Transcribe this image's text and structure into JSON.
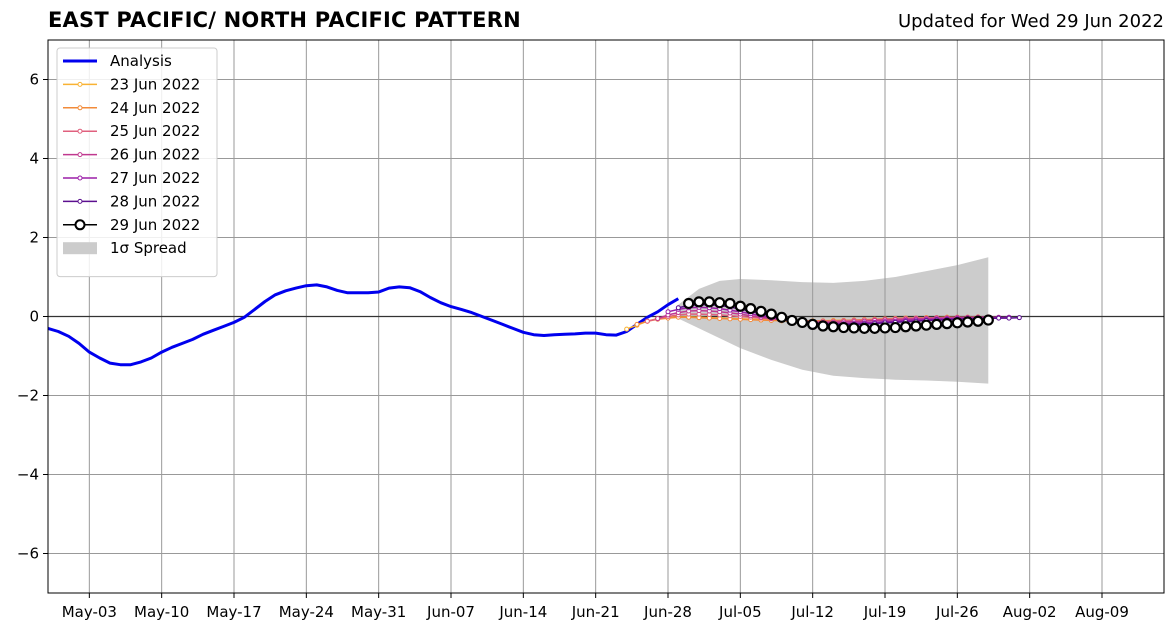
{
  "chart_data": {
    "type": "line",
    "title": "EAST PACIFIC/ NORTH PACIFIC PATTERN",
    "subtitle": "Updated for Wed 29 Jun 2022",
    "ylim": [
      -7,
      7
    ],
    "yticks": [
      6,
      4,
      2,
      0,
      -2,
      -4,
      -6
    ],
    "ytick_labels": [
      "6",
      "4",
      "2",
      "0",
      "−2",
      "−4",
      "−6"
    ],
    "xlim": [
      "2022-04-29",
      "2022-08-15"
    ],
    "xticks": [
      "2022-05-03",
      "2022-05-10",
      "2022-05-17",
      "2022-05-24",
      "2022-05-31",
      "2022-06-07",
      "2022-06-14",
      "2022-06-21",
      "2022-06-28",
      "2022-07-05",
      "2022-07-12",
      "2022-07-19",
      "2022-07-26",
      "2022-08-02",
      "2022-08-09"
    ],
    "xtick_labels": [
      "May-03",
      "May-10",
      "May-17",
      "May-24",
      "May-31",
      "Jun-07",
      "Jun-14",
      "Jun-21",
      "Jun-28",
      "Jul-05",
      "Jul-12",
      "Jul-19",
      "Jul-26",
      "Aug-02",
      "Aug-09"
    ],
    "grid": true,
    "legend_position": "top-left",
    "spread": {
      "name": "1σ Spread",
      "color": "#cccccc",
      "x": [
        "2022-06-29",
        "2022-07-01",
        "2022-07-03",
        "2022-07-05",
        "2022-07-08",
        "2022-07-11",
        "2022-07-14",
        "2022-07-17",
        "2022-07-20",
        "2022-07-23",
        "2022-07-26",
        "2022-07-29"
      ],
      "upper": [
        0.3,
        0.7,
        0.9,
        0.95,
        0.92,
        0.87,
        0.85,
        0.9,
        1.0,
        1.15,
        1.3,
        1.5
      ],
      "lower": [
        -0.05,
        -0.3,
        -0.55,
        -0.8,
        -1.1,
        -1.35,
        -1.5,
        -1.56,
        -1.6,
        -1.62,
        -1.65,
        -1.7
      ]
    },
    "series": [
      {
        "name": "Analysis",
        "color": "#0000ee",
        "width": 3,
        "marker": "none",
        "x": [
          "2022-04-29",
          "2022-04-30",
          "2022-05-01",
          "2022-05-02",
          "2022-05-03",
          "2022-05-04",
          "2022-05-05",
          "2022-05-06",
          "2022-05-07",
          "2022-05-08",
          "2022-05-09",
          "2022-05-10",
          "2022-05-11",
          "2022-05-12",
          "2022-05-13",
          "2022-05-14",
          "2022-05-15",
          "2022-05-16",
          "2022-05-17",
          "2022-05-18",
          "2022-05-19",
          "2022-05-20",
          "2022-05-21",
          "2022-05-22",
          "2022-05-23",
          "2022-05-24",
          "2022-05-25",
          "2022-05-26",
          "2022-05-27",
          "2022-05-28",
          "2022-05-29",
          "2022-05-30",
          "2022-05-31",
          "2022-06-01",
          "2022-06-02",
          "2022-06-03",
          "2022-06-04",
          "2022-06-05",
          "2022-06-06",
          "2022-06-07",
          "2022-06-08",
          "2022-06-09",
          "2022-06-10",
          "2022-06-11",
          "2022-06-12",
          "2022-06-13",
          "2022-06-14",
          "2022-06-15",
          "2022-06-16",
          "2022-06-17",
          "2022-06-18",
          "2022-06-19",
          "2022-06-20",
          "2022-06-21",
          "2022-06-22",
          "2022-06-23",
          "2022-06-24",
          "2022-06-25",
          "2022-06-26",
          "2022-06-27",
          "2022-06-28",
          "2022-06-29"
        ],
        "y": [
          -0.3,
          -0.38,
          -0.5,
          -0.68,
          -0.9,
          -1.05,
          -1.18,
          -1.22,
          -1.22,
          -1.15,
          -1.05,
          -0.9,
          -0.78,
          -0.68,
          -0.58,
          -0.45,
          -0.35,
          -0.25,
          -0.15,
          -0.02,
          0.18,
          0.38,
          0.55,
          0.65,
          0.72,
          0.78,
          0.8,
          0.75,
          0.66,
          0.6,
          0.6,
          0.6,
          0.62,
          0.72,
          0.75,
          0.73,
          0.63,
          0.48,
          0.35,
          0.25,
          0.18,
          0.1,
          0.0,
          -0.1,
          -0.2,
          -0.3,
          -0.4,
          -0.46,
          -0.48,
          -0.46,
          -0.45,
          -0.44,
          -0.42,
          -0.42,
          -0.46,
          -0.47,
          -0.38,
          -0.2,
          -0.02,
          0.12,
          0.3,
          0.45
        ]
      },
      {
        "name": "23 Jun 2022",
        "color": "#f9b233",
        "width": 1.5,
        "marker": "dot",
        "x": [
          "2022-06-24",
          "2022-06-25",
          "2022-06-26",
          "2022-06-27",
          "2022-06-28",
          "2022-06-29",
          "2022-06-30",
          "2022-07-01",
          "2022-07-02",
          "2022-07-03",
          "2022-07-04",
          "2022-07-05",
          "2022-07-06",
          "2022-07-07",
          "2022-07-08",
          "2022-07-09",
          "2022-07-10",
          "2022-07-11",
          "2022-07-12",
          "2022-07-13",
          "2022-07-14",
          "2022-07-15",
          "2022-07-16",
          "2022-07-17",
          "2022-07-18",
          "2022-07-19",
          "2022-07-20",
          "2022-07-21",
          "2022-07-22",
          "2022-07-23",
          "2022-07-24",
          "2022-07-25",
          "2022-07-26",
          "2022-07-27"
        ],
        "y": [
          -0.32,
          -0.22,
          -0.12,
          -0.05,
          -0.02,
          -0.01,
          -0.01,
          -0.02,
          -0.03,
          -0.04,
          -0.05,
          -0.06,
          -0.07,
          -0.08,
          -0.09,
          -0.1,
          -0.11,
          -0.11,
          -0.11,
          -0.11,
          -0.1,
          -0.1,
          -0.09,
          -0.08,
          -0.07,
          -0.06,
          -0.05,
          -0.04,
          -0.04,
          -0.03,
          -0.03,
          -0.02,
          -0.02,
          -0.02
        ]
      },
      {
        "name": "24 Jun 2022",
        "color": "#f28b3a",
        "width": 1.5,
        "marker": "dot",
        "x": [
          "2022-06-25",
          "2022-06-26",
          "2022-06-27",
          "2022-06-28",
          "2022-06-29",
          "2022-06-30",
          "2022-07-01",
          "2022-07-02",
          "2022-07-03",
          "2022-07-04",
          "2022-07-05",
          "2022-07-06",
          "2022-07-07",
          "2022-07-08",
          "2022-07-09",
          "2022-07-10",
          "2022-07-11",
          "2022-07-12",
          "2022-07-13",
          "2022-07-14",
          "2022-07-15",
          "2022-07-16",
          "2022-07-17",
          "2022-07-18",
          "2022-07-19",
          "2022-07-20",
          "2022-07-21",
          "2022-07-22",
          "2022-07-23",
          "2022-07-24",
          "2022-07-25",
          "2022-07-26",
          "2022-07-27",
          "2022-07-28"
        ],
        "y": [
          -0.2,
          -0.12,
          -0.07,
          -0.04,
          -0.02,
          -0.02,
          -0.03,
          -0.04,
          -0.05,
          -0.06,
          -0.07,
          -0.08,
          -0.09,
          -0.1,
          -0.11,
          -0.12,
          -0.12,
          -0.12,
          -0.11,
          -0.11,
          -0.1,
          -0.09,
          -0.08,
          -0.07,
          -0.06,
          -0.05,
          -0.04,
          -0.04,
          -0.03,
          -0.03,
          -0.02,
          -0.02,
          -0.02,
          -0.01
        ]
      },
      {
        "name": "25 Jun 2022",
        "color": "#e0607e",
        "width": 1.5,
        "marker": "dot",
        "x": [
          "2022-06-26",
          "2022-06-27",
          "2022-06-28",
          "2022-06-29",
          "2022-06-30",
          "2022-07-01",
          "2022-07-02",
          "2022-07-03",
          "2022-07-04",
          "2022-07-05",
          "2022-07-06",
          "2022-07-07",
          "2022-07-08",
          "2022-07-09",
          "2022-07-10",
          "2022-07-11",
          "2022-07-12",
          "2022-07-13",
          "2022-07-14",
          "2022-07-15",
          "2022-07-16",
          "2022-07-17",
          "2022-07-18",
          "2022-07-19",
          "2022-07-20",
          "2022-07-21",
          "2022-07-22",
          "2022-07-23",
          "2022-07-24",
          "2022-07-25",
          "2022-07-26",
          "2022-07-27",
          "2022-07-28",
          "2022-07-29"
        ],
        "y": [
          -0.12,
          -0.06,
          0.0,
          0.04,
          0.06,
          0.06,
          0.05,
          0.04,
          0.02,
          0.0,
          -0.02,
          -0.04,
          -0.06,
          -0.08,
          -0.1,
          -0.11,
          -0.12,
          -0.12,
          -0.12,
          -0.11,
          -0.1,
          -0.09,
          -0.08,
          -0.07,
          -0.06,
          -0.05,
          -0.04,
          -0.04,
          -0.03,
          -0.03,
          -0.02,
          -0.02,
          -0.02,
          -0.01
        ]
      },
      {
        "name": "26 Jun 2022",
        "color": "#c0398f",
        "width": 1.5,
        "marker": "dot",
        "x": [
          "2022-06-27",
          "2022-06-28",
          "2022-06-29",
          "2022-06-30",
          "2022-07-01",
          "2022-07-02",
          "2022-07-03",
          "2022-07-04",
          "2022-07-05",
          "2022-07-06",
          "2022-07-07",
          "2022-07-08",
          "2022-07-09",
          "2022-07-10",
          "2022-07-11",
          "2022-07-12",
          "2022-07-13",
          "2022-07-14",
          "2022-07-15",
          "2022-07-16",
          "2022-07-17",
          "2022-07-18",
          "2022-07-19",
          "2022-07-20",
          "2022-07-21",
          "2022-07-22",
          "2022-07-23",
          "2022-07-24",
          "2022-07-25",
          "2022-07-26",
          "2022-07-27",
          "2022-07-28",
          "2022-07-29",
          "2022-07-30"
        ],
        "y": [
          -0.05,
          0.04,
          0.1,
          0.14,
          0.15,
          0.14,
          0.12,
          0.09,
          0.06,
          0.02,
          -0.02,
          -0.05,
          -0.08,
          -0.11,
          -0.13,
          -0.14,
          -0.15,
          -0.15,
          -0.14,
          -0.13,
          -0.12,
          -0.1,
          -0.09,
          -0.08,
          -0.07,
          -0.06,
          -0.05,
          -0.04,
          -0.04,
          -0.03,
          -0.03,
          -0.02,
          -0.02,
          -0.02
        ]
      },
      {
        "name": "27 Jun 2022",
        "color": "#9b1ea8",
        "width": 1.5,
        "marker": "dot",
        "x": [
          "2022-06-28",
          "2022-06-29",
          "2022-06-30",
          "2022-07-01",
          "2022-07-02",
          "2022-07-03",
          "2022-07-04",
          "2022-07-05",
          "2022-07-06",
          "2022-07-07",
          "2022-07-08",
          "2022-07-09",
          "2022-07-10",
          "2022-07-11",
          "2022-07-12",
          "2022-07-13",
          "2022-07-14",
          "2022-07-15",
          "2022-07-16",
          "2022-07-17",
          "2022-07-18",
          "2022-07-19",
          "2022-07-20",
          "2022-07-21",
          "2022-07-22",
          "2022-07-23",
          "2022-07-24",
          "2022-07-25",
          "2022-07-26",
          "2022-07-27",
          "2022-07-28",
          "2022-07-29",
          "2022-07-30",
          "2022-07-31"
        ],
        "y": [
          0.12,
          0.18,
          0.22,
          0.23,
          0.22,
          0.2,
          0.16,
          0.12,
          0.07,
          0.02,
          -0.03,
          -0.07,
          -0.11,
          -0.14,
          -0.16,
          -0.17,
          -0.18,
          -0.18,
          -0.17,
          -0.16,
          -0.15,
          -0.13,
          -0.12,
          -0.1,
          -0.09,
          -0.08,
          -0.07,
          -0.06,
          -0.05,
          -0.04,
          -0.04,
          -0.03,
          -0.03,
          -0.02
        ]
      },
      {
        "name": "28 Jun 2022",
        "color": "#5b0f8f",
        "width": 1.5,
        "marker": "dot",
        "x": [
          "2022-06-29",
          "2022-06-30",
          "2022-07-01",
          "2022-07-02",
          "2022-07-03",
          "2022-07-04",
          "2022-07-05",
          "2022-07-06",
          "2022-07-07",
          "2022-07-08",
          "2022-07-09",
          "2022-07-10",
          "2022-07-11",
          "2022-07-12",
          "2022-07-13",
          "2022-07-14",
          "2022-07-15",
          "2022-07-16",
          "2022-07-17",
          "2022-07-18",
          "2022-07-19",
          "2022-07-20",
          "2022-07-21",
          "2022-07-22",
          "2022-07-23",
          "2022-07-24",
          "2022-07-25",
          "2022-07-26",
          "2022-07-27",
          "2022-07-28",
          "2022-07-29",
          "2022-07-30",
          "2022-07-31",
          "2022-08-01"
        ],
        "y": [
          0.22,
          0.28,
          0.3,
          0.3,
          0.28,
          0.24,
          0.19,
          0.13,
          0.07,
          0.01,
          -0.05,
          -0.1,
          -0.14,
          -0.17,
          -0.19,
          -0.2,
          -0.2,
          -0.2,
          -0.19,
          -0.18,
          -0.16,
          -0.15,
          -0.13,
          -0.12,
          -0.1,
          -0.09,
          -0.08,
          -0.07,
          -0.06,
          -0.05,
          -0.05,
          -0.04,
          -0.04,
          -0.03
        ]
      },
      {
        "name": "29 Jun 2022",
        "color": "#000000",
        "width": 1.5,
        "marker": "circle",
        "x": [
          "2022-06-30",
          "2022-07-01",
          "2022-07-02",
          "2022-07-03",
          "2022-07-04",
          "2022-07-05",
          "2022-07-06",
          "2022-07-07",
          "2022-07-08",
          "2022-07-09",
          "2022-07-10",
          "2022-07-11",
          "2022-07-12",
          "2022-07-13",
          "2022-07-14",
          "2022-07-15",
          "2022-07-16",
          "2022-07-17",
          "2022-07-18",
          "2022-07-19",
          "2022-07-20",
          "2022-07-21",
          "2022-07-22",
          "2022-07-23",
          "2022-07-24",
          "2022-07-25",
          "2022-07-26",
          "2022-07-27",
          "2022-07-28",
          "2022-07-29"
        ],
        "y": [
          0.33,
          0.37,
          0.37,
          0.35,
          0.33,
          0.26,
          0.2,
          0.13,
          0.06,
          -0.02,
          -0.1,
          -0.15,
          -0.2,
          -0.24,
          -0.26,
          -0.28,
          -0.29,
          -0.3,
          -0.3,
          -0.29,
          -0.28,
          -0.26,
          -0.24,
          -0.22,
          -0.2,
          -0.18,
          -0.16,
          -0.14,
          -0.12,
          -0.09
        ]
      }
    ]
  }
}
